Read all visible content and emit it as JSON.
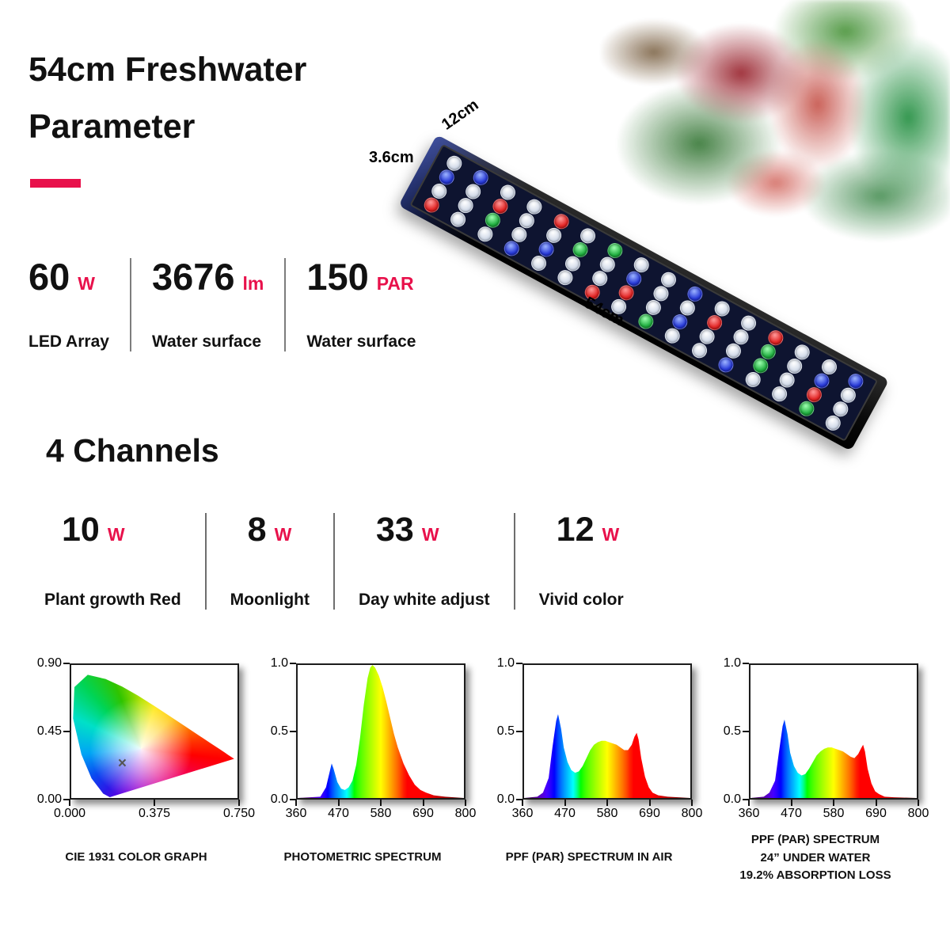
{
  "page": {
    "title_line1": "54cm Freshwater",
    "title_line2": "Parameter"
  },
  "colors": {
    "accent": "#e8114b"
  },
  "product": {
    "dim_width": "12cm",
    "dim_height": "3.6cm",
    "dim_length": "54cm",
    "led_pattern": [
      "WBWWRWGWWBWWRWWB",
      "BWRWWGWBWWRWGWBW",
      "WWGWBWWRWBWWGWRW",
      "RWWBWWRWGWWBWWGW"
    ]
  },
  "top_stats": {
    "items": [
      {
        "value": "60",
        "unit": "W",
        "label": "LED Array"
      },
      {
        "value": "3676",
        "unit": "lm",
        "label": "Water surface"
      },
      {
        "value": "150",
        "unit": "PAR",
        "label": "Water surface"
      }
    ]
  },
  "channels": {
    "heading": "4 Channels",
    "items": [
      {
        "value": "10",
        "unit": "W",
        "label": "Plant growth Red"
      },
      {
        "value": "8",
        "unit": "W",
        "label": "Moonlight"
      },
      {
        "value": "33",
        "unit": "W",
        "label": "Day white adjust"
      },
      {
        "value": "12",
        "unit": "W",
        "label": "Vivid color"
      }
    ]
  },
  "chart_data": [
    {
      "type": "area",
      "name": "cie-1931",
      "title": "CIE 1931 COLOR GRAPH",
      "x_ticks": [
        "0.000",
        "0.375",
        "0.750"
      ],
      "y_ticks": [
        "0.90",
        "0.45",
        "0.00"
      ],
      "xlim": [
        0,
        0.75
      ],
      "ylim": [
        0,
        0.9
      ],
      "grid": false,
      "locus": [
        [
          0.1741,
          0.005
        ],
        [
          0.144,
          0.0297
        ],
        [
          0.0913,
          0.1327
        ],
        [
          0.0454,
          0.295
        ],
        [
          0.0082,
          0.5384
        ],
        [
          0.0139,
          0.7502
        ],
        [
          0.0743,
          0.8338
        ],
        [
          0.1547,
          0.8059
        ],
        [
          0.2296,
          0.7543
        ],
        [
          0.3016,
          0.6923
        ],
        [
          0.3731,
          0.6245
        ],
        [
          0.4441,
          0.5547
        ],
        [
          0.5125,
          0.4866
        ],
        [
          0.5752,
          0.4242
        ],
        [
          0.627,
          0.3725
        ],
        [
          0.6658,
          0.334
        ],
        [
          0.6915,
          0.3083
        ],
        [
          0.7079,
          0.292
        ],
        [
          0.7347,
          0.2653
        ]
      ],
      "white_point": [
        0.23,
        0.23
      ],
      "white_point_marker": "×"
    },
    {
      "type": "area",
      "name": "photometric-spectrum",
      "title": "PHOTOMETRIC SPECTRUM",
      "x_ticks": [
        "360",
        "470",
        "580",
        "690",
        "800"
      ],
      "y_ticks": [
        "1.0",
        "0.5",
        "0.0"
      ],
      "xlim": [
        360,
        800
      ],
      "ylim": [
        0,
        1
      ],
      "grid": false,
      "x": [
        360,
        420,
        435,
        445,
        450,
        455,
        465,
        475,
        485,
        495,
        505,
        515,
        525,
        535,
        545,
        552,
        558,
        565,
        575,
        585,
        595,
        605,
        615,
        625,
        640,
        655,
        670,
        685,
        700,
        720,
        750,
        800
      ],
      "y": [
        0,
        0.01,
        0.08,
        0.2,
        0.26,
        0.22,
        0.12,
        0.07,
        0.06,
        0.08,
        0.13,
        0.25,
        0.45,
        0.7,
        0.9,
        0.98,
        1.0,
        0.98,
        0.92,
        0.83,
        0.72,
        0.6,
        0.48,
        0.38,
        0.26,
        0.17,
        0.1,
        0.06,
        0.04,
        0.02,
        0.01,
        0
      ]
    },
    {
      "type": "area",
      "name": "ppf-spectrum-air",
      "title": "PPF (PAR) SPECTRUM IN AIR",
      "x_ticks": [
        "360",
        "470",
        "580",
        "690",
        "800"
      ],
      "y_ticks": [
        "1.0",
        "0.5",
        "0.0"
      ],
      "xlim": [
        360,
        800
      ],
      "ylim": [
        0,
        1
      ],
      "grid": false,
      "x": [
        360,
        395,
        410,
        425,
        435,
        445,
        450,
        458,
        465,
        475,
        485,
        495,
        505,
        515,
        525,
        535,
        545,
        555,
        565,
        575,
        585,
        595,
        605,
        615,
        625,
        635,
        645,
        652,
        658,
        663,
        670,
        680,
        690,
        700,
        715,
        740,
        800
      ],
      "y": [
        0,
        0.01,
        0.04,
        0.15,
        0.38,
        0.58,
        0.63,
        0.52,
        0.38,
        0.27,
        0.21,
        0.19,
        0.2,
        0.24,
        0.3,
        0.36,
        0.4,
        0.42,
        0.43,
        0.43,
        0.42,
        0.41,
        0.4,
        0.38,
        0.36,
        0.36,
        0.4,
        0.46,
        0.49,
        0.44,
        0.3,
        0.16,
        0.08,
        0.04,
        0.02,
        0.01,
        0
      ]
    },
    {
      "type": "area",
      "name": "ppf-spectrum-underwater",
      "title": "PPF (PAR) SPECTRUM\n24”  UNDER WATER\n19.2% ABSORPTION LOSS",
      "x_ticks": [
        "360",
        "470",
        "580",
        "690",
        "800"
      ],
      "y_ticks": [
        "1.0",
        "0.5",
        "0.0"
      ],
      "xlim": [
        360,
        800
      ],
      "ylim": [
        0,
        1
      ],
      "grid": false,
      "x": [
        360,
        395,
        410,
        425,
        435,
        445,
        450,
        458,
        465,
        475,
        485,
        495,
        505,
        515,
        525,
        535,
        545,
        555,
        565,
        575,
        585,
        595,
        605,
        615,
        625,
        635,
        645,
        652,
        658,
        663,
        670,
        680,
        690,
        700,
        715,
        740,
        800
      ],
      "y": [
        0,
        0.01,
        0.04,
        0.13,
        0.34,
        0.54,
        0.59,
        0.48,
        0.34,
        0.24,
        0.19,
        0.17,
        0.18,
        0.22,
        0.27,
        0.32,
        0.35,
        0.37,
        0.38,
        0.38,
        0.37,
        0.36,
        0.35,
        0.33,
        0.31,
        0.3,
        0.33,
        0.37,
        0.4,
        0.35,
        0.22,
        0.11,
        0.05,
        0.03,
        0.01,
        0.005,
        0
      ]
    }
  ]
}
